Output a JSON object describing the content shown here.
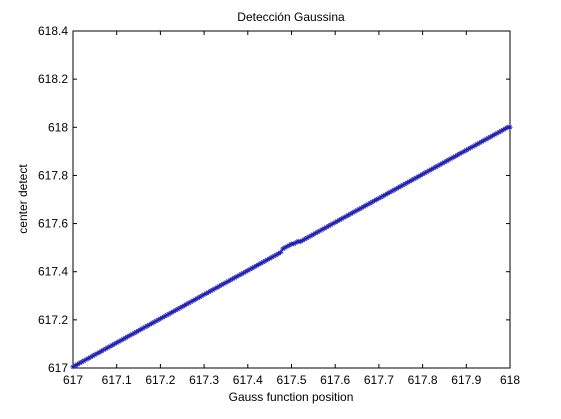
{
  "chart_data": {
    "type": "scatter",
    "title": "Detección Gaussina",
    "xlabel": "Gauss function position",
    "ylabel": "center detect",
    "xlim": [
      617,
      618
    ],
    "ylim": [
      617,
      618.4
    ],
    "grid": false,
    "x_ticks": [
      "617",
      "617.1",
      "617.2",
      "617.3",
      "617.4",
      "617.5",
      "617.6",
      "617.7",
      "617.8",
      "617.9",
      "618"
    ],
    "y_ticks": [
      "617",
      "617.2",
      "617.4",
      "617.6",
      "617.8",
      "618",
      "618.2",
      "618.4"
    ],
    "series": [
      {
        "marker": "*",
        "color": "#1f1fb4",
        "line": true,
        "x_start": 617.0,
        "x_end": 618.0,
        "x_step": 0.005,
        "y_formula_note": "",
        "points_sample": [
          [
            617.0,
            617.005
          ],
          [
            617.1,
            617.105
          ],
          [
            617.2,
            617.205
          ],
          [
            617.3,
            617.305
          ],
          [
            617.4,
            617.405
          ],
          [
            617.5,
            617.51
          ],
          [
            617.6,
            617.605
          ],
          [
            617.7,
            617.705
          ],
          [
            617.8,
            617.805
          ],
          [
            617.9,
            617.905
          ],
          [
            618.0,
            618.0
          ]
        ]
      }
    ]
  }
}
